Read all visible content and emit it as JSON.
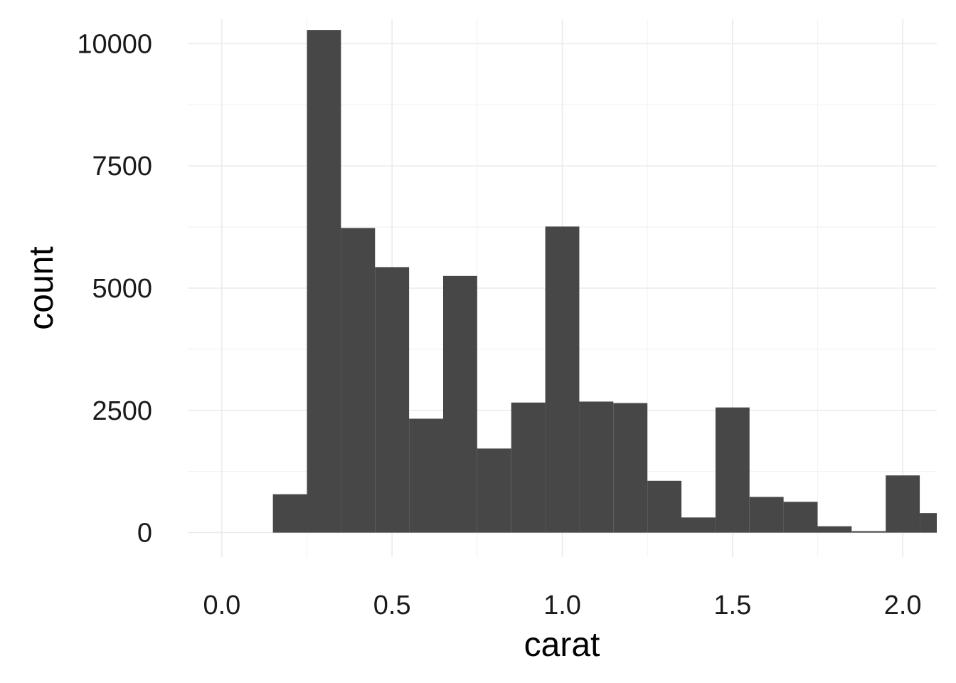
{
  "chart_data": {
    "type": "bar",
    "xlabel": "carat",
    "ylabel": "count",
    "bin_width": 0.1,
    "xlim": [
      -0.1,
      2.1
    ],
    "ylim": [
      -500,
      10500
    ],
    "x_ticks": [
      0.0,
      0.5,
      1.0,
      1.5,
      2.0
    ],
    "x_tick_labels": [
      "0.0",
      "0.5",
      "1.0",
      "1.5",
      "2.0"
    ],
    "y_ticks": [
      0,
      2500,
      5000,
      7500,
      10000
    ],
    "y_tick_labels": [
      "0",
      "2500",
      "5000",
      "7500",
      "10000"
    ],
    "grid": true,
    "bar_color": "#474747",
    "grid_major_color": "#ebebeb",
    "grid_minor_color": "#f3f3f3",
    "bins": [
      {
        "x0": 0.15,
        "x1": 0.25,
        "count": 785
      },
      {
        "x0": 0.25,
        "x1": 0.35,
        "count": 10280
      },
      {
        "x0": 0.35,
        "x1": 0.45,
        "count": 6230
      },
      {
        "x0": 0.45,
        "x1": 0.55,
        "count": 5430
      },
      {
        "x0": 0.55,
        "x1": 0.65,
        "count": 2330
      },
      {
        "x0": 0.65,
        "x1": 0.75,
        "count": 5250
      },
      {
        "x0": 0.75,
        "x1": 0.85,
        "count": 1720
      },
      {
        "x0": 0.85,
        "x1": 0.95,
        "count": 2660
      },
      {
        "x0": 0.95,
        "x1": 1.05,
        "count": 6260
      },
      {
        "x0": 1.05,
        "x1": 1.15,
        "count": 2680
      },
      {
        "x0": 1.15,
        "x1": 1.25,
        "count": 2650
      },
      {
        "x0": 1.25,
        "x1": 1.35,
        "count": 1060
      },
      {
        "x0": 1.35,
        "x1": 1.45,
        "count": 310
      },
      {
        "x0": 1.45,
        "x1": 1.55,
        "count": 2560
      },
      {
        "x0": 1.55,
        "x1": 1.65,
        "count": 730
      },
      {
        "x0": 1.65,
        "x1": 1.75,
        "count": 630
      },
      {
        "x0": 1.75,
        "x1": 1.85,
        "count": 130
      },
      {
        "x0": 1.85,
        "x1": 1.95,
        "count": 30
      },
      {
        "x0": 1.95,
        "x1": 2.05,
        "count": 1170
      },
      {
        "x0": 2.05,
        "x1": 2.15,
        "count": 400
      }
    ]
  }
}
